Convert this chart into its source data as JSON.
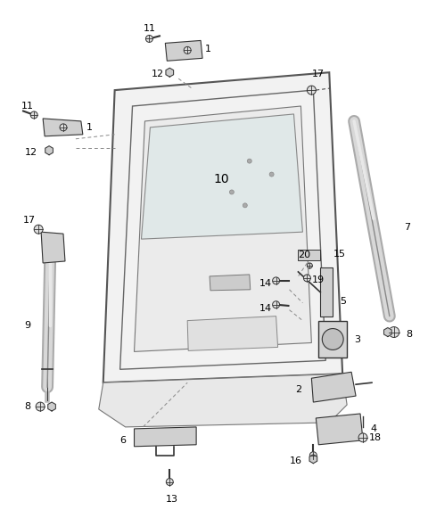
{
  "background_color": "#ffffff",
  "figsize": [
    4.8,
    5.81
  ],
  "dpi": 100,
  "line_color": "#555555",
  "part_color": "#333333",
  "dashed_color": "#888888",
  "fill_light": "#e8e8e8",
  "fill_mid": "#d0d0d0",
  "fill_dark": "#b0b0b0"
}
